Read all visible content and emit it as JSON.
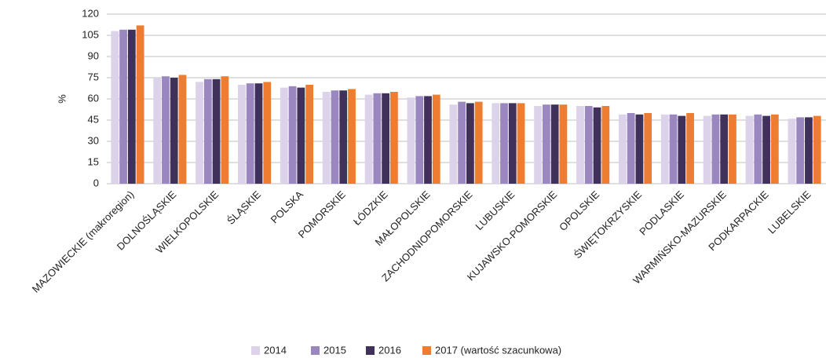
{
  "chart_data": {
    "type": "bar",
    "y_label": "%",
    "categories": [
      "MAZOWIECKIE (makroregion)",
      "DOLNOŚLĄSKIE",
      "WIELKOPOLSKIE",
      "ŚLĄSKIE",
      "POLSKA",
      "POMORSKIE",
      "ŁÓDZKIE",
      "MAŁOPOLSKIE",
      "ZACHODNIOPOMORSKIE",
      "LUBUSKIE",
      "KUJAWSKO-POMORSKIE",
      "OPOLSKIE",
      "ŚWIĘTOKRZYSKIE",
      "PODLASKIE",
      "WARMIŃSKO-MAZURSKIE",
      "PODKARPACKIE",
      "LUBELSKIE"
    ],
    "series": [
      {
        "name": "2014",
        "color": "#dcd3ea",
        "values": [
          108,
          75,
          72,
          70,
          68,
          65,
          63,
          61,
          56,
          57,
          55,
          55,
          49,
          49,
          48,
          48,
          46
        ]
      },
      {
        "name": "2015",
        "color": "#9b87c0",
        "values": [
          109,
          76,
          74,
          71,
          69,
          66,
          64,
          62,
          58,
          57,
          56,
          55,
          50,
          49,
          49,
          49,
          47
        ]
      },
      {
        "name": "2016",
        "color": "#3f3159",
        "values": [
          109,
          75,
          74,
          71,
          68,
          66,
          64,
          62,
          57,
          57,
          56,
          54,
          49,
          48,
          49,
          48,
          47
        ]
      },
      {
        "name": "2017 (wartość szacunkowa)",
        "color": "#ee7d31",
        "values": [
          112,
          77,
          76,
          72,
          70,
          67,
          65,
          63,
          58,
          57,
          56,
          55,
          50,
          50,
          49,
          49,
          48
        ]
      }
    ],
    "ylim": [
      0,
      120
    ],
    "yticks": [
      0,
      15,
      30,
      45,
      60,
      75,
      90,
      105,
      120
    ],
    "grid": true,
    "legend": "bottom"
  }
}
